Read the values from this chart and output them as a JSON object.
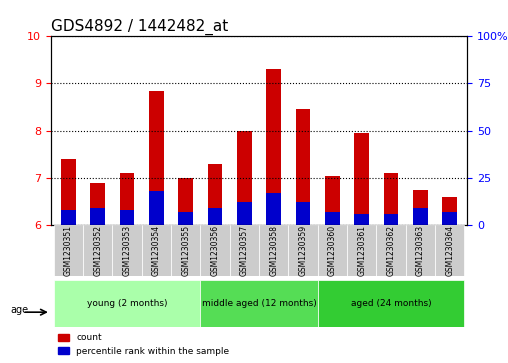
{
  "title": "GDS4892 / 1442482_at",
  "samples": [
    "GSM1230351",
    "GSM1230352",
    "GSM1230353",
    "GSM1230354",
    "GSM1230355",
    "GSM1230356",
    "GSM1230357",
    "GSM1230358",
    "GSM1230359",
    "GSM1230360",
    "GSM1230361",
    "GSM1230362",
    "GSM1230363",
    "GSM1230364"
  ],
  "count_values": [
    7.4,
    6.9,
    7.1,
    8.85,
    7.0,
    7.3,
    8.0,
    9.3,
    8.45,
    7.05,
    7.95,
    7.1,
    6.75,
    6.6
  ],
  "percentile_values": [
    0.08,
    0.09,
    0.08,
    0.18,
    0.07,
    0.09,
    0.12,
    0.17,
    0.12,
    0.07,
    0.06,
    0.06,
    0.09,
    0.07
  ],
  "ylim_left": [
    6,
    10
  ],
  "ylim_right": [
    0,
    100
  ],
  "yticks_left": [
    6,
    7,
    8,
    9,
    10
  ],
  "yticks_right": [
    0,
    25,
    50,
    75,
    100
  ],
  "ytick_labels_right": [
    "0",
    "25",
    "50",
    "75",
    "100%"
  ],
  "bar_color_red": "#cc0000",
  "bar_color_blue": "#0000cc",
  "grid_color": "#000000",
  "bar_width": 0.5,
  "groups": [
    {
      "label": "young (2 months)",
      "samples": [
        0,
        1,
        2,
        3,
        4
      ],
      "color": "#aaffaa"
    },
    {
      "label": "middle aged (12 months)",
      "samples": [
        5,
        6,
        7,
        8
      ],
      "color": "#55dd55"
    },
    {
      "label": "aged (24 months)",
      "samples": [
        9,
        10,
        11,
        12,
        13
      ],
      "color": "#33cc33"
    }
  ],
  "age_label": "age",
  "legend_count": "count",
  "legend_percentile": "percentile rank within the sample",
  "background_color": "#ffffff",
  "plot_bg_color": "#ffffff",
  "tick_label_bg": "#cccccc"
}
